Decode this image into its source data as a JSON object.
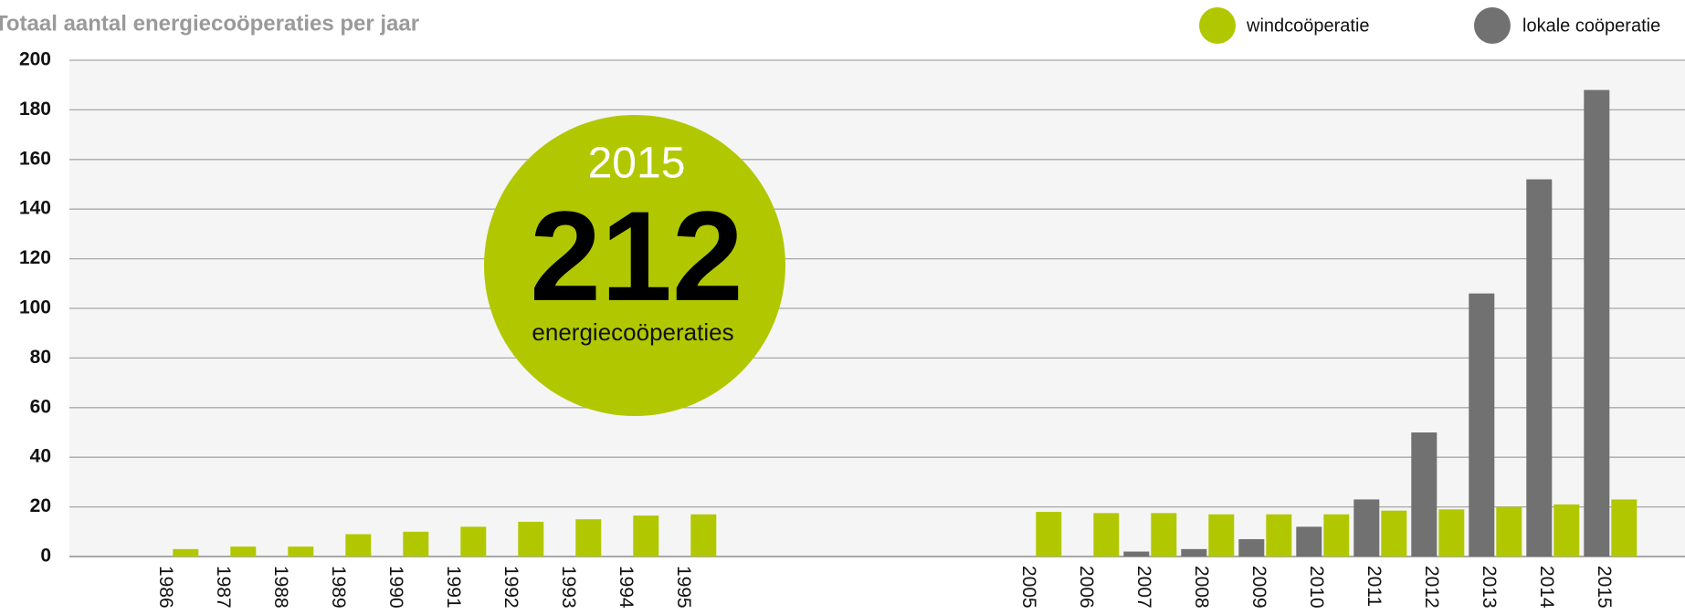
{
  "chart_data": {
    "type": "bar",
    "title": "Totaal aantal energiecoöperaties per jaar",
    "categories": [
      "1986",
      "1987",
      "1988",
      "1989",
      "1990",
      "1991",
      "1992",
      "1993",
      "1994",
      "1995",
      null,
      null,
      null,
      null,
      null,
      "2005",
      "2006",
      "2007",
      "2008",
      "2009",
      "2010",
      "2011",
      "2012",
      "2013",
      "2014",
      "2015"
    ],
    "series": [
      {
        "name": "lokale coöperatie",
        "color": "#717171",
        "values": [
          null,
          null,
          null,
          null,
          null,
          null,
          null,
          null,
          null,
          null,
          null,
          null,
          null,
          null,
          null,
          null,
          null,
          2,
          3,
          7,
          12,
          23,
          50,
          106,
          152,
          188
        ]
      },
      {
        "name": "windcoöperatie",
        "color": "#b1c800",
        "values": [
          3,
          4,
          4,
          9,
          10,
          12,
          14,
          15,
          16.5,
          17,
          null,
          null,
          null,
          null,
          null,
          18,
          17.5,
          17.5,
          17,
          17,
          17,
          18.5,
          19,
          20,
          21,
          23
        ]
      }
    ],
    "ylim": [
      0,
      200
    ],
    "yticks": [
      0,
      20,
      40,
      60,
      80,
      100,
      120,
      140,
      160,
      180,
      200
    ],
    "grid": true,
    "legend": "top-right",
    "annotation": {
      "year": "2015",
      "total": "212",
      "caption": "energiecoöperaties"
    }
  }
}
